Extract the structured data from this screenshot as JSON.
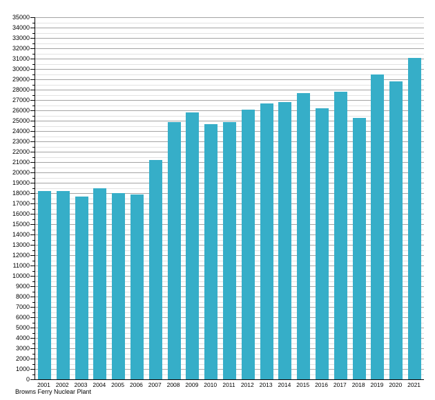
{
  "chart_data": {
    "type": "bar",
    "title": "",
    "caption": "Browns Ferry Nuclear Plant",
    "xlabel": "",
    "ylabel": "",
    "categories": [
      "2001",
      "2002",
      "2003",
      "2004",
      "2005",
      "2006",
      "2007",
      "2008",
      "2009",
      "2010",
      "2011",
      "2012",
      "2013",
      "2014",
      "2015",
      "2016",
      "2017",
      "2018",
      "2019",
      "2020",
      "2021"
    ],
    "values": [
      18200,
      18200,
      17700,
      18500,
      18000,
      17900,
      21200,
      24900,
      25800,
      24700,
      24900,
      26100,
      26700,
      26800,
      27700,
      26200,
      27800,
      25300,
      29500,
      28800,
      31100
    ],
    "ylim": [
      0,
      35000
    ],
    "y_major_step": 1000,
    "y_minor_step": 500,
    "y_tick_labels": [
      "0",
      "1000",
      "2000",
      "3000",
      "4000",
      "5000",
      "6000",
      "7000",
      "8000",
      "9000",
      "10000",
      "11000",
      "12000",
      "13000",
      "14000",
      "15000",
      "16000",
      "17000",
      "18000",
      "19000",
      "20000",
      "21000",
      "22000",
      "23000",
      "24000",
      "25000",
      "26000",
      "27000",
      "28000",
      "29000",
      "30000",
      "31000",
      "32000",
      "33000",
      "34000",
      "35000"
    ],
    "legend": "none",
    "grid": "horizontal, major and minor",
    "colors": {
      "bar": "#36aec8",
      "major_gridline": "#a3a3a3",
      "minor_gridline": "#e2e2e2",
      "axis": "#000000",
      "text": "#000000",
      "background": "#ffffff"
    }
  }
}
